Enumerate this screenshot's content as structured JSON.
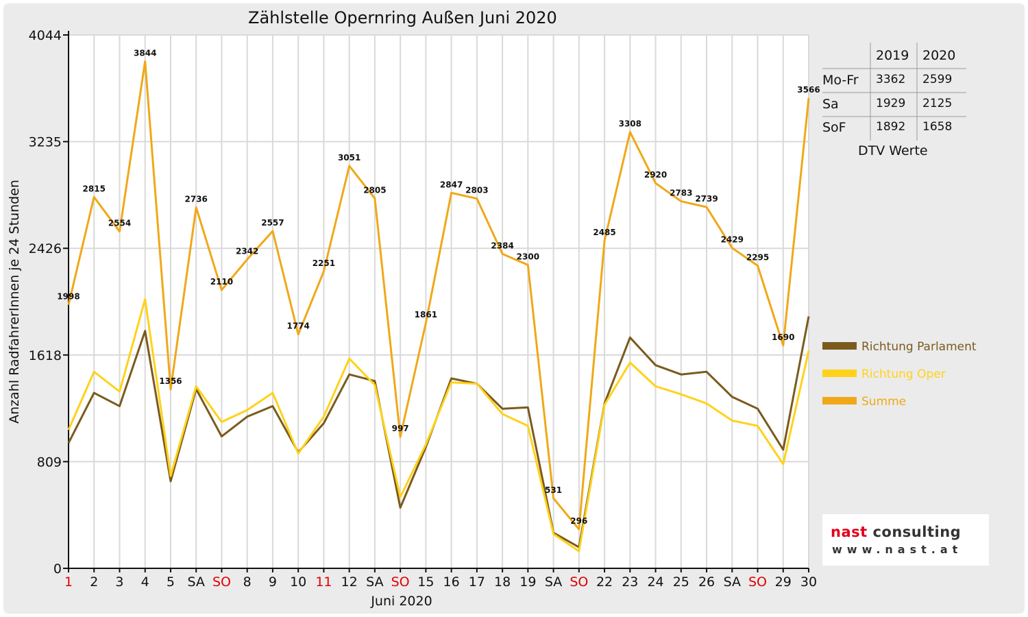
{
  "chart_data": {
    "type": "line",
    "title": "Zählstelle Opernring Außen Juni 2020",
    "xlabel": "Juni 2020",
    "ylabel": "Anzahl RadfahrerInnen je 24 Stunden",
    "ylim": [
      0,
      4044
    ],
    "yticks": [
      "0",
      "809",
      "1618",
      "2426",
      "3235",
      "4044"
    ],
    "categories": [
      "1",
      "2",
      "3",
      "4",
      "5",
      "SA",
      "SO",
      "8",
      "9",
      "10",
      "11",
      "12",
      "SA",
      "SO",
      "15",
      "16",
      "17",
      "18",
      "19",
      "SA",
      "SO",
      "22",
      "23",
      "24",
      "25",
      "26",
      "SA",
      "SO",
      "29",
      "30"
    ],
    "category_colors": [
      "#e00000",
      "#111111",
      "#111111",
      "#111111",
      "#111111",
      "#111111",
      "#e00000",
      "#111111",
      "#111111",
      "#111111",
      "#e00000",
      "#111111",
      "#111111",
      "#e00000",
      "#111111",
      "#111111",
      "#111111",
      "#111111",
      "#111111",
      "#111111",
      "#e00000",
      "#111111",
      "#111111",
      "#111111",
      "#111111",
      "#111111",
      "#111111",
      "#e00000",
      "#111111",
      "#111111"
    ],
    "grid": true,
    "legend_position": "right",
    "series": [
      {
        "name": "Richtung Parlament",
        "color": "#7a5a1e",
        "values": [
          950,
          1330,
          1230,
          1800,
          660,
          1360,
          1000,
          1150,
          1230,
          880,
          1100,
          1470,
          1420,
          460,
          920,
          1440,
          1400,
          1210,
          1220,
          270,
          160,
          1250,
          1750,
          1540,
          1470,
          1490,
          1300,
          1210,
          900,
          1910
        ]
      },
      {
        "name": "Richtung Oper",
        "color": "#ffd21a",
        "values": [
          1050,
          1490,
          1340,
          2040,
          700,
          1380,
          1110,
          1200,
          1330,
          870,
          1150,
          1590,
          1390,
          540,
          940,
          1410,
          1400,
          1170,
          1080,
          260,
          130,
          1240,
          1560,
          1380,
          1320,
          1250,
          1120,
          1080,
          790,
          1650
        ]
      },
      {
        "name": "Summe",
        "color": "#f0a818",
        "values": [
          1998,
          2815,
          2554,
          3844,
          1356,
          2736,
          2110,
          2342,
          2557,
          1774,
          2251,
          3051,
          2805,
          997,
          1861,
          2847,
          2803,
          2384,
          2300,
          531,
          296,
          2485,
          3308,
          2920,
          2783,
          2739,
          2429,
          2295,
          1690,
          3566
        ]
      }
    ],
    "data_labels": [
      "1998",
      "2815",
      "2554",
      "3844",
      "1356",
      "2736",
      "2110",
      "2342",
      "2557",
      "1774",
      "2251",
      "3051",
      "2805",
      "997",
      "1861",
      "2847",
      "2803",
      "2384",
      "2300",
      "531",
      "296",
      "2485",
      "3308",
      "2920",
      "2783",
      "2739",
      "2429",
      "2295",
      "1690",
      "3566"
    ]
  },
  "dtv_table": {
    "caption": "DTV Werte",
    "header": [
      "",
      "2019",
      "2020"
    ],
    "rows": [
      [
        "Mo-Fr",
        "3362",
        "2599"
      ],
      [
        "Sa",
        "1929",
        "2125"
      ],
      [
        "SoF",
        "1892",
        "1658"
      ]
    ]
  },
  "logo": {
    "name_part1": "nast",
    "name_part2": " consulting",
    "url": "www.nast.at"
  }
}
